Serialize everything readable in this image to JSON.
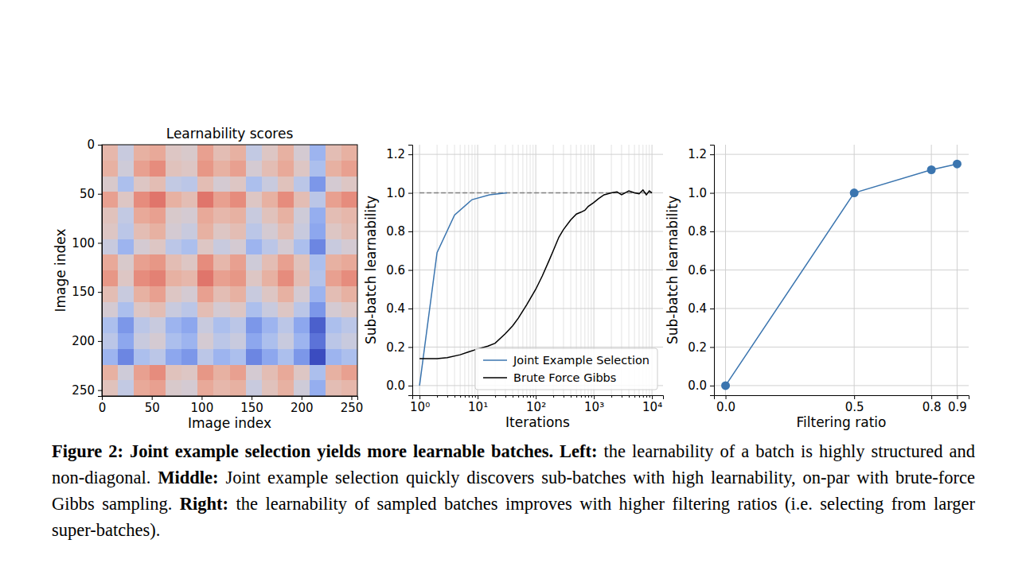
{
  "caption": {
    "label": "Figure 2:",
    "title": "Joint example selection yields more learnable batches.",
    "parts": [
      {
        "label": "Left:",
        "text": "the learnability of a batch is highly structured and non-diagonal."
      },
      {
        "label": "Middle:",
        "text": "Joint example selection quickly discovers sub-batches with high learnability, on-par with brute-force Gibbs sampling."
      },
      {
        "label": "Right:",
        "text": "the learnability of sampled batches improves with higher filtering ratios (i.e. selecting from larger super-batches)."
      }
    ]
  },
  "chart_data": [
    {
      "type": "heatmap",
      "title": "Learnability scores",
      "x_label": "Image index",
      "y_label": "Image index",
      "xlim": [
        0,
        256
      ],
      "ylim": [
        256,
        0
      ],
      "xticks": [
        0,
        50,
        100,
        150,
        200,
        250
      ],
      "yticks": [
        0,
        50,
        100,
        150,
        200,
        250
      ],
      "zlim": [
        -1,
        1
      ],
      "cells": [
        [
          0.25,
          -0.1,
          0.3,
          0.35,
          0.1,
          0.05,
          0.4,
          0.2,
          0.3,
          -0.15,
          0.1,
          0.3,
          0.0,
          -0.4,
          0.2,
          0.3
        ],
        [
          0.3,
          -0.05,
          0.4,
          0.5,
          0.15,
          0.1,
          0.45,
          0.3,
          0.4,
          0.0,
          0.2,
          0.35,
          0.1,
          -0.3,
          0.3,
          0.4
        ],
        [
          0.05,
          -0.3,
          0.1,
          0.2,
          -0.15,
          -0.2,
          0.2,
          0.0,
          0.1,
          -0.3,
          -0.1,
          0.15,
          -0.2,
          -0.6,
          0.0,
          0.1
        ],
        [
          0.4,
          0.1,
          0.5,
          0.6,
          0.3,
          0.2,
          0.6,
          0.4,
          0.5,
          0.1,
          0.3,
          0.5,
          0.2,
          -0.2,
          0.4,
          0.5
        ],
        [
          0.15,
          -0.15,
          0.35,
          0.4,
          0.05,
          0.0,
          0.35,
          0.25,
          0.3,
          -0.1,
          0.15,
          0.3,
          -0.05,
          -0.45,
          0.2,
          0.25
        ],
        [
          0.1,
          -0.2,
          0.2,
          0.3,
          0.0,
          -0.1,
          0.3,
          0.1,
          0.2,
          -0.2,
          0.0,
          0.2,
          -0.1,
          -0.5,
          0.1,
          0.2
        ],
        [
          -0.1,
          -0.4,
          0.0,
          0.1,
          -0.2,
          -0.3,
          0.1,
          -0.1,
          0.0,
          -0.4,
          -0.2,
          0.0,
          -0.3,
          -0.7,
          -0.1,
          0.0
        ],
        [
          0.35,
          0.05,
          0.4,
          0.45,
          0.2,
          0.1,
          0.5,
          0.25,
          0.4,
          -0.05,
          0.2,
          0.4,
          0.15,
          -0.3,
          0.3,
          0.35
        ],
        [
          0.45,
          0.1,
          0.5,
          0.55,
          0.3,
          0.25,
          0.6,
          0.4,
          0.45,
          0.1,
          0.3,
          0.5,
          0.2,
          -0.25,
          0.4,
          0.5
        ],
        [
          0.2,
          -0.1,
          0.3,
          0.4,
          0.1,
          0.0,
          0.4,
          0.2,
          0.3,
          -0.1,
          0.1,
          0.3,
          0.0,
          -0.4,
          0.2,
          0.3
        ],
        [
          0.0,
          -0.3,
          0.1,
          0.2,
          -0.1,
          -0.2,
          0.2,
          0.0,
          0.1,
          -0.3,
          -0.1,
          0.1,
          -0.2,
          -0.6,
          0.0,
          0.1
        ],
        [
          -0.3,
          -0.6,
          -0.2,
          -0.1,
          -0.4,
          -0.5,
          -0.1,
          -0.3,
          -0.2,
          -0.6,
          -0.4,
          -0.2,
          -0.5,
          -0.9,
          -0.3,
          -0.2
        ],
        [
          -0.2,
          -0.5,
          -0.1,
          0.0,
          -0.3,
          -0.4,
          0.0,
          -0.2,
          -0.1,
          -0.5,
          -0.3,
          -0.1,
          -0.4,
          -0.8,
          -0.2,
          -0.1
        ],
        [
          -0.4,
          -0.7,
          -0.3,
          -0.2,
          -0.5,
          -0.6,
          -0.2,
          -0.4,
          -0.3,
          -0.7,
          -0.5,
          -0.3,
          -0.6,
          -1.0,
          -0.4,
          -0.3
        ],
        [
          0.3,
          -0.05,
          0.4,
          0.5,
          0.15,
          0.1,
          0.45,
          0.3,
          0.4,
          0.0,
          0.2,
          0.35,
          0.1,
          -0.3,
          0.3,
          0.4
        ],
        [
          0.15,
          -0.15,
          0.35,
          0.4,
          0.05,
          0.0,
          0.35,
          0.25,
          0.3,
          -0.1,
          0.15,
          0.3,
          -0.05,
          -0.45,
          0.2,
          0.25
        ]
      ]
    },
    {
      "type": "line",
      "log": "x",
      "grid": true,
      "legend": "lower right",
      "x_label": "Iterations",
      "y_label": "Sub-batch learnability",
      "xlim": [
        0.75,
        15500
      ],
      "ylim": [
        -0.05,
        1.25
      ],
      "xticks": [
        {
          "value": 1,
          "label": "10⁰"
        },
        {
          "value": 10,
          "label": "10¹"
        },
        {
          "value": 100,
          "label": "10²"
        },
        {
          "value": 1000,
          "label": "10³"
        },
        {
          "value": 10000,
          "label": "10⁴"
        }
      ],
      "xticks_minor": [
        2,
        3,
        4,
        5,
        6,
        7,
        8,
        9,
        20,
        30,
        40,
        50,
        60,
        70,
        80,
        90,
        200,
        300,
        400,
        500,
        600,
        700,
        800,
        900,
        2000,
        3000,
        4000,
        5000,
        6000,
        7000,
        8000,
        9000
      ],
      "yticks": [
        {
          "value": 0.0,
          "label": "0.0"
        },
        {
          "value": 0.2,
          "label": "0.2"
        },
        {
          "value": 0.4,
          "label": "0.4"
        },
        {
          "value": 0.6,
          "label": "0.6"
        },
        {
          "value": 0.8,
          "label": "0.8"
        },
        {
          "value": 1.0,
          "label": "1.0"
        },
        {
          "value": 1.2,
          "label": "1.2"
        }
      ],
      "hline": {
        "value": 1.0,
        "x": [
          1,
          10000
        ],
        "color": "#808080",
        "line_style": "dashed"
      },
      "series": [
        {
          "name": "Joint Example Selection",
          "color": "#3b75af",
          "x": [
            1,
            2,
            4,
            8,
            16,
            32
          ],
          "values": [
            0.0,
            0.69,
            0.885,
            0.965,
            0.99,
            1.0
          ]
        },
        {
          "name": "Brute Force Gibbs",
          "color": "#000000",
          "x": [
            1,
            2,
            3,
            5,
            7,
            10,
            15,
            20,
            30,
            40,
            50,
            70,
            100,
            130,
            170,
            200,
            250,
            300,
            400,
            500,
            600,
            700,
            800,
            1000,
            1200,
            1500,
            2000,
            2500,
            3000,
            4000,
            5000,
            6000,
            7000,
            8000,
            9000,
            10000
          ],
          "values": [
            0.14,
            0.14,
            0.145,
            0.16,
            0.175,
            0.19,
            0.205,
            0.22,
            0.27,
            0.31,
            0.35,
            0.42,
            0.5,
            0.57,
            0.65,
            0.7,
            0.77,
            0.81,
            0.86,
            0.89,
            0.9,
            0.91,
            0.93,
            0.95,
            0.97,
            0.99,
            1.0,
            1.005,
            0.99,
            1.01,
            1.0,
            0.995,
            1.015,
            0.99,
            1.01,
            1.0
          ]
        }
      ]
    },
    {
      "type": "line",
      "grid": true,
      "marker": "circle",
      "color": "#3b75af",
      "x_label": "Filtering ratio",
      "y_label": "Sub-batch learnability",
      "xlim": [
        -0.045,
        0.945
      ],
      "ylim": [
        -0.05,
        1.25
      ],
      "xticks": [
        {
          "value": 0.0,
          "label": "0.0"
        },
        {
          "value": 0.5,
          "label": "0.5"
        },
        {
          "value": 0.8,
          "label": "0.8"
        },
        {
          "value": 0.9,
          "label": "0.9"
        }
      ],
      "yticks": [
        {
          "value": 0.0,
          "label": "0.0"
        },
        {
          "value": 0.2,
          "label": "0.2"
        },
        {
          "value": 0.4,
          "label": "0.4"
        },
        {
          "value": 0.6,
          "label": "0.6"
        },
        {
          "value": 0.8,
          "label": "0.8"
        },
        {
          "value": 1.0,
          "label": "1.0"
        },
        {
          "value": 1.2,
          "label": "1.2"
        }
      ],
      "x": [
        0.0,
        0.5,
        0.8,
        0.9
      ],
      "values": [
        0.0,
        1.0,
        1.12,
        1.15
      ]
    }
  ]
}
